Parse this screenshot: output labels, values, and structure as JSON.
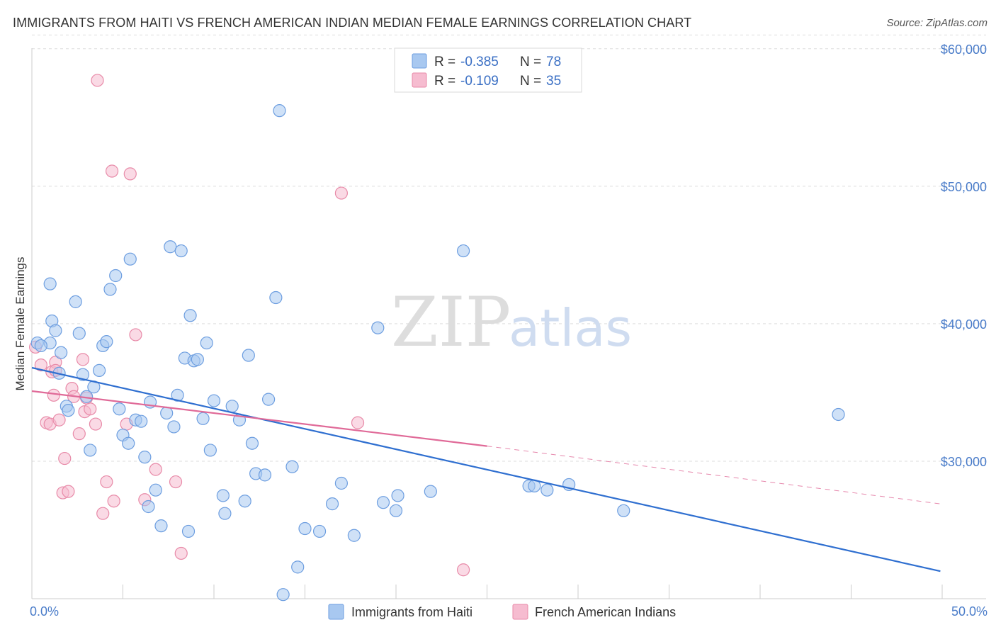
{
  "title": "IMMIGRANTS FROM HAITI VS FRENCH AMERICAN INDIAN MEDIAN FEMALE EARNINGS CORRELATION CHART",
  "source": "Source: ZipAtlas.com",
  "watermark": {
    "zip": "ZIP",
    "atlas": "atlas"
  },
  "colors": {
    "haiti_fill": "#a8c8f0",
    "haiti_stroke": "#6d9ee0",
    "haiti_line": "#2f6fd0",
    "french_fill": "#f6bcd0",
    "french_stroke": "#e88aa8",
    "french_line": "#e06a98",
    "grid": "#dddddd",
    "axis_text": "#4a7cc9"
  },
  "legend": {
    "rows": [
      {
        "r_label": "R =",
        "r_value": "-0.385",
        "n_label": "N =",
        "n_value": "78"
      },
      {
        "r_label": "R =",
        "r_value": "-0.109",
        "n_label": "N =",
        "n_value": "35"
      }
    ]
  },
  "chart_data": {
    "type": "scatter",
    "title": "IMMIGRANTS FROM HAITI VS FRENCH AMERICAN INDIAN MEDIAN FEMALE EARNINGS CORRELATION CHART",
    "xlabel": "",
    "ylabel": "Median Female Earnings",
    "xlim": [
      0,
      50
    ],
    "ylim": [
      20000,
      62000
    ],
    "x_tick_labels": [
      "0.0%",
      "50.0%"
    ],
    "y_ticks": [
      30000,
      40000,
      50000,
      60000
    ],
    "y_tick_labels": [
      "$30,000",
      "$40,000",
      "$50,000",
      "$60,000"
    ],
    "legend_position": "bottom",
    "series": [
      {
        "name": "Immigrants from Haiti",
        "trend": {
          "x": [
            0,
            49.9
          ],
          "y": [
            36800,
            22000
          ],
          "dashed_extension": false
        },
        "points": [
          [
            0.3,
            38600
          ],
          [
            1.0,
            38600
          ],
          [
            0.5,
            38400
          ],
          [
            1.1,
            40200
          ],
          [
            1.0,
            42900
          ],
          [
            1.3,
            39500
          ],
          [
            1.6,
            37900
          ],
          [
            1.5,
            36400
          ],
          [
            1.9,
            34000
          ],
          [
            2.0,
            33700
          ],
          [
            2.4,
            41600
          ],
          [
            2.6,
            39300
          ],
          [
            2.8,
            36300
          ],
          [
            3.0,
            34700
          ],
          [
            3.2,
            30800
          ],
          [
            3.4,
            35400
          ],
          [
            3.7,
            36600
          ],
          [
            3.9,
            38400
          ],
          [
            4.1,
            38700
          ],
          [
            4.3,
            42500
          ],
          [
            4.6,
            43500
          ],
          [
            4.8,
            33800
          ],
          [
            5.0,
            31900
          ],
          [
            5.3,
            31300
          ],
          [
            5.4,
            44700
          ],
          [
            5.7,
            33000
          ],
          [
            6.0,
            32900
          ],
          [
            6.2,
            30300
          ],
          [
            6.4,
            26700
          ],
          [
            6.5,
            34300
          ],
          [
            6.8,
            27900
          ],
          [
            7.1,
            25300
          ],
          [
            7.4,
            33500
          ],
          [
            7.6,
            45600
          ],
          [
            7.8,
            32500
          ],
          [
            8.0,
            34800
          ],
          [
            8.2,
            45300
          ],
          [
            8.4,
            37500
          ],
          [
            8.6,
            24900
          ],
          [
            8.7,
            40600
          ],
          [
            8.9,
            37300
          ],
          [
            9.1,
            37400
          ],
          [
            9.4,
            33100
          ],
          [
            9.6,
            38600
          ],
          [
            9.8,
            30800
          ],
          [
            10.0,
            34400
          ],
          [
            10.5,
            27500
          ],
          [
            10.6,
            26200
          ],
          [
            11.0,
            34000
          ],
          [
            11.4,
            33000
          ],
          [
            11.7,
            27100
          ],
          [
            11.9,
            37700
          ],
          [
            12.1,
            31300
          ],
          [
            12.3,
            29100
          ],
          [
            12.8,
            29000
          ],
          [
            13.0,
            34500
          ],
          [
            13.4,
            41900
          ],
          [
            13.6,
            55500
          ],
          [
            13.8,
            20300
          ],
          [
            14.3,
            29600
          ],
          [
            14.6,
            22300
          ],
          [
            15.0,
            25100
          ],
          [
            15.8,
            24900
          ],
          [
            16.5,
            26900
          ],
          [
            17.0,
            28400
          ],
          [
            17.7,
            24600
          ],
          [
            19.0,
            39700
          ],
          [
            19.3,
            27000
          ],
          [
            20.0,
            26400
          ],
          [
            20.1,
            27500
          ],
          [
            21.9,
            27800
          ],
          [
            23.7,
            45300
          ],
          [
            27.3,
            28200
          ],
          [
            27.6,
            28200
          ],
          [
            28.3,
            27900
          ],
          [
            29.5,
            28300
          ],
          [
            32.5,
            26400
          ],
          [
            44.3,
            33400
          ]
        ]
      },
      {
        "name": "French American Indians",
        "trend": {
          "x": [
            0,
            25
          ],
          "y": [
            35100,
            31100
          ],
          "dashed_extension": true,
          "extension_to": [
            49.9,
            26900
          ]
        },
        "points": [
          [
            0.2,
            38300
          ],
          [
            0.5,
            37000
          ],
          [
            0.8,
            32800
          ],
          [
            1.0,
            32700
          ],
          [
            1.1,
            36500
          ],
          [
            1.2,
            34800
          ],
          [
            1.3,
            37200
          ],
          [
            1.5,
            33000
          ],
          [
            1.7,
            27700
          ],
          [
            1.8,
            30200
          ],
          [
            2.0,
            27800
          ],
          [
            2.2,
            35300
          ],
          [
            2.3,
            34700
          ],
          [
            2.6,
            32000
          ],
          [
            2.8,
            37400
          ],
          [
            2.9,
            33600
          ],
          [
            3.2,
            33800
          ],
          [
            3.5,
            32700
          ],
          [
            3.6,
            57700
          ],
          [
            4.1,
            28500
          ],
          [
            4.5,
            27100
          ],
          [
            4.4,
            51100
          ],
          [
            5.2,
            32700
          ],
          [
            5.4,
            50900
          ],
          [
            5.7,
            39200
          ],
          [
            6.2,
            27200
          ],
          [
            6.8,
            29400
          ],
          [
            7.9,
            28500
          ],
          [
            8.2,
            23300
          ],
          [
            3.9,
            26200
          ],
          [
            17.0,
            49500
          ],
          [
            17.9,
            32800
          ],
          [
            23.7,
            22100
          ],
          [
            1.3,
            36600
          ],
          [
            3.0,
            34600
          ]
        ]
      }
    ]
  }
}
